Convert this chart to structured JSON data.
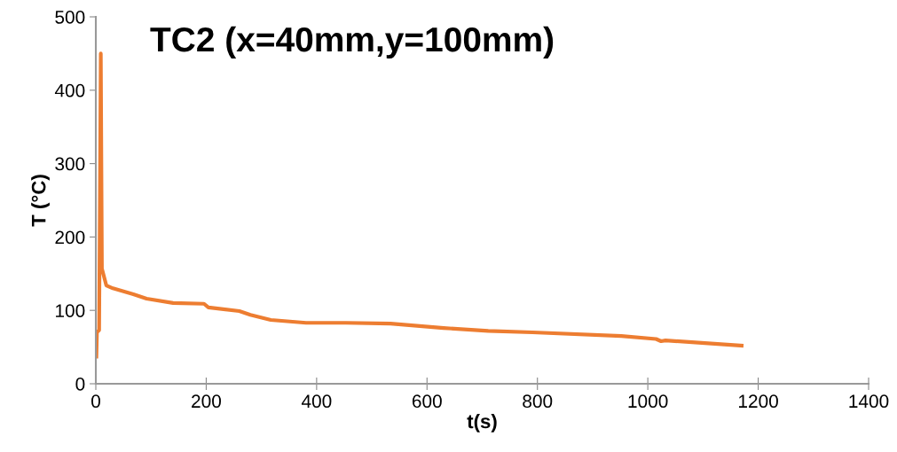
{
  "chart_data": {
    "type": "line",
    "title": "TC2 (x=40mm,y=100mm)",
    "xlabel": "t(s)",
    "ylabel": "T (°C)",
    "xlim": [
      0,
      1400
    ],
    "xticks": [
      0,
      200,
      400,
      600,
      800,
      1000,
      1200,
      1400
    ],
    "ylim": [
      0,
      500
    ],
    "yticks": [
      0,
      100,
      200,
      300,
      400,
      500
    ],
    "grid": false,
    "legend": false,
    "marker": "none",
    "line_style": "solid",
    "series": [
      {
        "color": "#ed7d31",
        "x": [
          1,
          2,
          6,
          9,
          11,
          19,
          31,
          68,
          92,
          140,
          196,
          204,
          260,
          280,
          317,
          381,
          453,
          534,
          630,
          711,
          791,
          952,
          1015,
          1024,
          1032,
          1170
        ],
        "values": [
          37,
          70,
          73,
          450,
          157,
          134,
          130,
          122,
          116,
          110,
          109,
          104,
          99,
          94,
          87,
          83,
          83,
          82,
          76,
          72,
          70,
          65,
          61,
          58,
          59,
          52
        ]
      }
    ]
  }
}
